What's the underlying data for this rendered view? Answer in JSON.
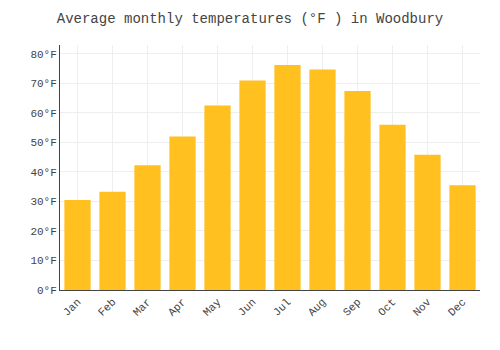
{
  "chart_data": {
    "type": "bar",
    "title": "Average monthly temperatures (°F ) in Woodbury",
    "categories": [
      "Jan",
      "Feb",
      "Mar",
      "Apr",
      "May",
      "Jun",
      "Jul",
      "Aug",
      "Sep",
      "Oct",
      "Nov",
      "Dec"
    ],
    "values": [
      30.5,
      33.3,
      42.3,
      52.0,
      62.5,
      71.0,
      76.2,
      74.7,
      67.4,
      56.0,
      45.8,
      35.5
    ],
    "color": "#FFC020",
    "ylim": [
      0,
      83
    ],
    "yticks": [
      {
        "value": 0,
        "label": "0°F"
      },
      {
        "value": 10,
        "label": "10°F"
      },
      {
        "value": 20,
        "label": "20°F"
      },
      {
        "value": 30,
        "label": "30°F"
      },
      {
        "value": 40,
        "label": "40°F"
      },
      {
        "value": 50,
        "label": "50°F"
      },
      {
        "value": 60,
        "label": "60°F"
      },
      {
        "value": 70,
        "label": "70°F"
      },
      {
        "value": 80,
        "label": "80°F"
      }
    ],
    "grid": true
  }
}
